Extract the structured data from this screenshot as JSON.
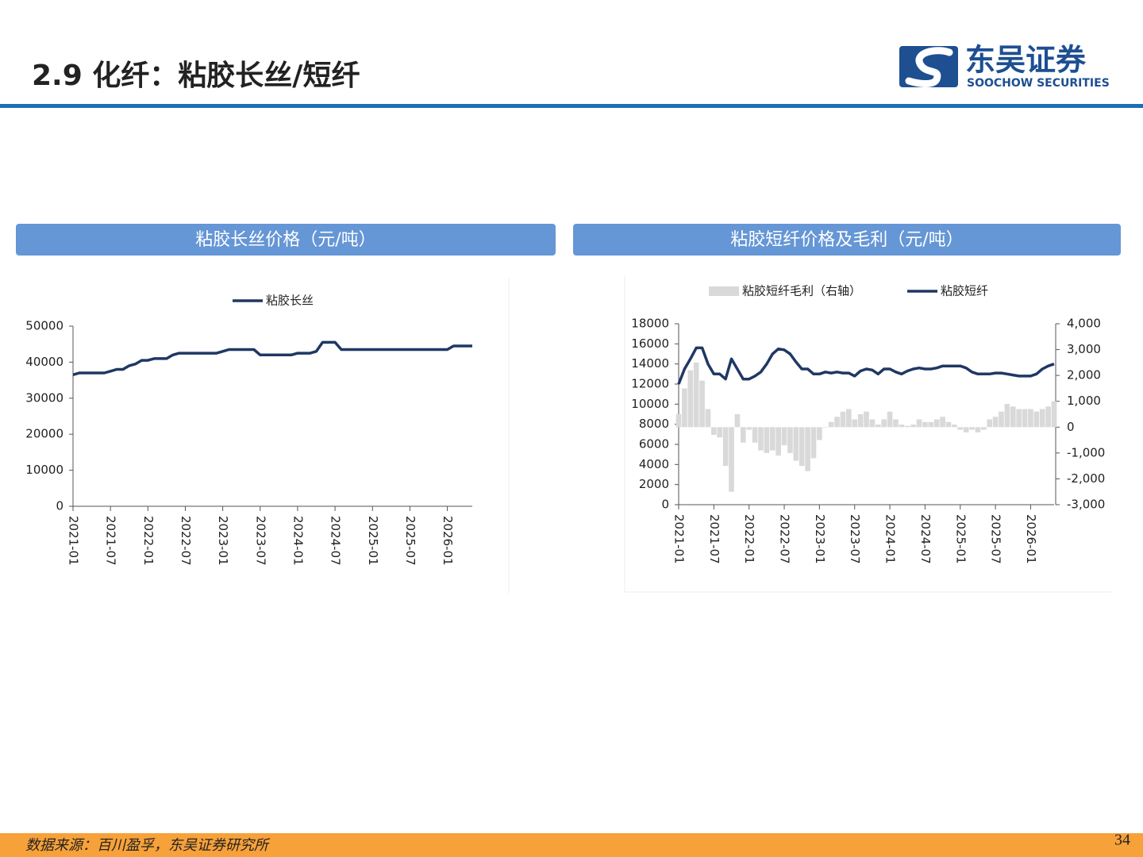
{
  "header": {
    "title": "2.9 化纤：粘胶长丝/短纤",
    "logo_cn": "东吴证券",
    "logo_en": "SOOCHOW SECURITIES"
  },
  "chart_data": [
    {
      "type": "line",
      "title": "粘胶长丝价格（元/吨）",
      "x": [
        "2021-01",
        "2021-02",
        "2021-03",
        "2021-04",
        "2021-05",
        "2021-06",
        "2021-07",
        "2021-08",
        "2021-09",
        "2021-10",
        "2021-11",
        "2021-12",
        "2022-01",
        "2022-02",
        "2022-03",
        "2022-04",
        "2022-05",
        "2022-06",
        "2022-07",
        "2022-08",
        "2022-09",
        "2022-10",
        "2022-11",
        "2022-12",
        "2023-01",
        "2023-02",
        "2023-03",
        "2023-04",
        "2023-05",
        "2023-06",
        "2023-07",
        "2023-08",
        "2023-09",
        "2023-10",
        "2023-11",
        "2023-12",
        "2024-01",
        "2024-02",
        "2024-03",
        "2024-04",
        "2024-05",
        "2024-06",
        "2024-07",
        "2024-08",
        "2024-09",
        "2024-10",
        "2024-11",
        "2024-12",
        "2025-01",
        "2025-02",
        "2025-03",
        "2025-04",
        "2025-05",
        "2025-06",
        "2025-07",
        "2025-08",
        "2025-09",
        "2025-10",
        "2025-11",
        "2025-12",
        "2026-01",
        "2026-02",
        "2026-03",
        "2026-04",
        "2026-05"
      ],
      "series": [
        {
          "name": "粘胶长丝",
          "color": "#1f3864",
          "values": [
            36500,
            37000,
            37000,
            37000,
            37000,
            37000,
            37500,
            38000,
            38000,
            39000,
            39500,
            40500,
            40500,
            41000,
            41000,
            41000,
            42000,
            42500,
            42500,
            42500,
            42500,
            42500,
            42500,
            42500,
            43000,
            43500,
            43500,
            43500,
            43500,
            43500,
            42000,
            42000,
            42000,
            42000,
            42000,
            42000,
            42500,
            42500,
            42500,
            43000,
            45500,
            45500,
            45500,
            43500,
            43500,
            43500,
            43500,
            43500,
            43500,
            43500,
            43500,
            43500,
            43500,
            43500,
            43500,
            43500,
            43500,
            43500,
            43500,
            43500,
            43500,
            44500,
            44500,
            44500,
            44500
          ]
        }
      ],
      "xlim": [
        "2021-01",
        "2026-05"
      ],
      "xticks": [
        "2021-01",
        "2021-07",
        "2022-01",
        "2022-07",
        "2023-01",
        "2023-07",
        "2024-01",
        "2024-07",
        "2025-01",
        "2025-07",
        "2026-01"
      ],
      "ylim": [
        0,
        50000
      ],
      "yticks": [
        0,
        10000,
        20000,
        30000,
        40000,
        50000
      ],
      "grid": false
    },
    {
      "type": "combo",
      "title": "粘胶短纤价格及毛利（元/吨）",
      "x": [
        "2021-01",
        "2021-02",
        "2021-03",
        "2021-04",
        "2021-05",
        "2021-06",
        "2021-07",
        "2021-08",
        "2021-09",
        "2021-10",
        "2021-11",
        "2021-12",
        "2022-01",
        "2022-02",
        "2022-03",
        "2022-04",
        "2022-05",
        "2022-06",
        "2022-07",
        "2022-08",
        "2022-09",
        "2022-10",
        "2022-11",
        "2022-12",
        "2023-01",
        "2023-02",
        "2023-03",
        "2023-04",
        "2023-05",
        "2023-06",
        "2023-07",
        "2023-08",
        "2023-09",
        "2023-10",
        "2023-11",
        "2023-12",
        "2024-01",
        "2024-02",
        "2024-03",
        "2024-04",
        "2024-05",
        "2024-06",
        "2024-07",
        "2024-08",
        "2024-09",
        "2024-10",
        "2024-11",
        "2024-12",
        "2025-01",
        "2025-02",
        "2025-03",
        "2025-04",
        "2025-05",
        "2025-06",
        "2025-07",
        "2025-08",
        "2025-09",
        "2025-10",
        "2025-11",
        "2025-12",
        "2026-01",
        "2026-02",
        "2026-03",
        "2026-04",
        "2026-05"
      ],
      "series": [
        {
          "name": "粘胶短纤毛利（右轴）",
          "type": "bar",
          "axis": "y2",
          "color": "#d9d9d9",
          "values": [
            500,
            1500,
            2200,
            2500,
            1800,
            700,
            -300,
            -400,
            -1500,
            -2500,
            500,
            -600,
            -100,
            -600,
            -900,
            -1000,
            -900,
            -1100,
            -700,
            -1000,
            -1300,
            -1500,
            -1700,
            -1200,
            -500,
            0,
            200,
            400,
            600,
            700,
            300,
            500,
            600,
            300,
            100,
            300,
            600,
            300,
            100,
            50,
            100,
            300,
            200,
            200,
            300,
            400,
            200,
            100,
            -100,
            -200,
            -100,
            -200,
            -100,
            300,
            400,
            600,
            900,
            800,
            700,
            700,
            700,
            600,
            700,
            800,
            1000
          ]
        },
        {
          "name": "粘胶短纤",
          "type": "line",
          "color": "#1f3864",
          "values": [
            12000,
            13500,
            14500,
            15600,
            15600,
            14000,
            13000,
            13000,
            12500,
            14500,
            13500,
            12500,
            12500,
            12800,
            13200,
            14000,
            15000,
            15500,
            15400,
            15000,
            14200,
            13500,
            13500,
            13000,
            13000,
            13200,
            13100,
            13200,
            13100,
            13100,
            12800,
            13300,
            13500,
            13400,
            13000,
            13500,
            13500,
            13200,
            13000,
            13300,
            13500,
            13600,
            13500,
            13500,
            13600,
            13800,
            13800,
            13800,
            13800,
            13600,
            13200,
            13000,
            13000,
            13000,
            13100,
            13100,
            13000,
            12900,
            12800,
            12800,
            12800,
            13000,
            13500,
            13800,
            14000
          ]
        }
      ],
      "xlim": [
        "2021-01",
        "2026-05"
      ],
      "xticks": [
        "2021-01",
        "2021-07",
        "2022-01",
        "2022-07",
        "2023-01",
        "2023-07",
        "2024-01",
        "2024-07",
        "2025-01",
        "2025-07",
        "2026-01"
      ],
      "ylim": [
        0,
        18000
      ],
      "yticks": [
        0,
        2000,
        4000,
        6000,
        8000,
        10000,
        12000,
        14000,
        16000,
        18000
      ],
      "y2lim": [
        -3000,
        4000
      ],
      "y2ticks": [
        {
          "value": -3000,
          "label": "-3,000"
        },
        {
          "value": -2000,
          "label": "-2,000"
        },
        {
          "value": -1000,
          "label": "-1,000"
        },
        0,
        {
          "value": 1000,
          "label": "1,000"
        },
        {
          "value": 2000,
          "label": "2,000"
        },
        {
          "value": 3000,
          "label": "3,000"
        },
        {
          "value": 4000,
          "label": "4,000"
        }
      ],
      "grid": false
    }
  ],
  "footer": {
    "source": "数据来源：百川盈孚，东吴证券研究所",
    "page": 34
  }
}
